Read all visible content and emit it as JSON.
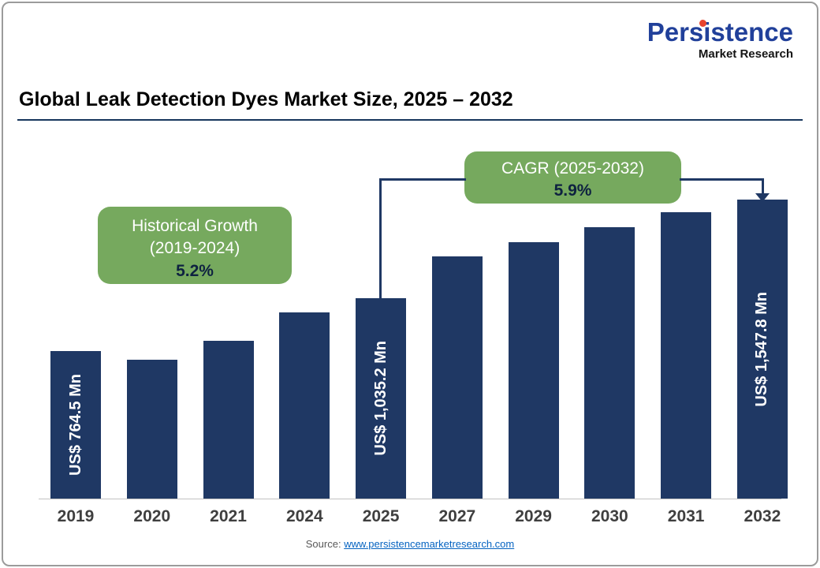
{
  "logo": {
    "name": "Persistence",
    "tagline": "Market Research",
    "brand_color": "#21409A",
    "dot_color": "#E8432D"
  },
  "header": {
    "title": "Global Leak Detection Dyes Market Size, 2025 – 2032"
  },
  "callouts": {
    "historical": {
      "line1": "Historical Growth",
      "line2": "(2019-2024)",
      "value": "5.2%"
    },
    "cagr": {
      "line1": "CAGR (2025-2032)",
      "value": "5.9%"
    }
  },
  "source": {
    "label": "Source:",
    "link": "www.persistencemarketresearch.com"
  },
  "chart_data": {
    "type": "bar",
    "title": "Global Leak Detection Dyes Market Size, 2025 – 2032",
    "unit": "US$ Mn",
    "categories": [
      "2019",
      "2020",
      "2021",
      "2024",
      "2025",
      "2027",
      "2029",
      "2030",
      "2031",
      "2032"
    ],
    "values": [
      764.5,
      720,
      815,
      965,
      1035.2,
      1255,
      1325,
      1405,
      1480,
      1547.8
    ],
    "labeled_values": {
      "2019": 764.5,
      "2025": 1035.2,
      "2032": 1547.8
    },
    "bar_labels": {
      "2019": "US$ 764.5 Mn",
      "2025": "US$ 1,035.2 Mn",
      "2032": "US$ 1,547.8 Mn"
    },
    "annotations": [
      "Historical Growth (2019-2024) 5.2%",
      "CAGR (2025-2032) 5.9%"
    ],
    "bar_color": "#1F3864",
    "callout_color": "#76A95E",
    "xlabel": "",
    "ylabel": "",
    "ylim": [
      0,
      1600
    ],
    "grid": false,
    "legend": false
  }
}
